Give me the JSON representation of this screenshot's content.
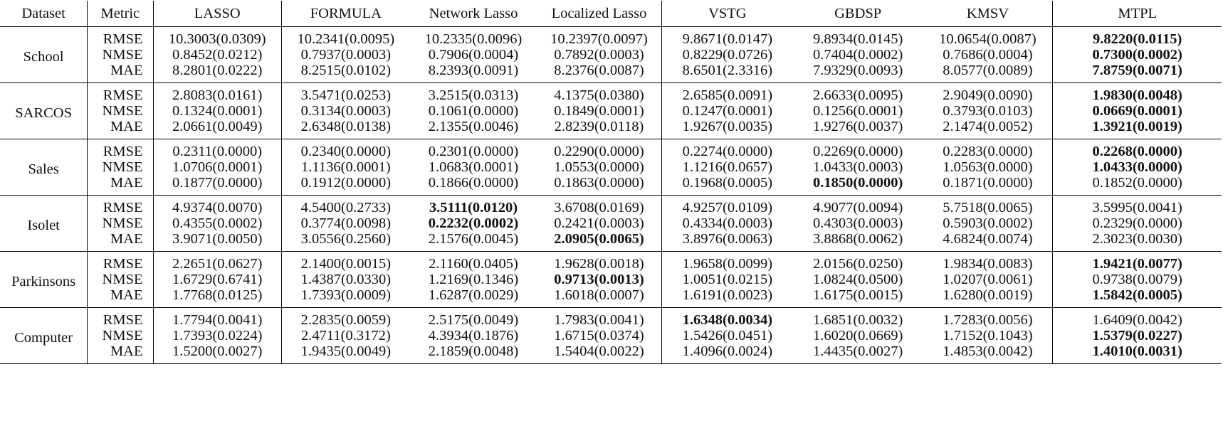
{
  "table": {
    "headers": [
      "Dataset",
      "Metric",
      "LASSO",
      "FORMULA",
      "Network Lasso",
      "Localized Lasso",
      "VSTG",
      "GBDSP",
      "KMSV",
      "MTPL"
    ],
    "groups": [
      {
        "dataset": "School",
        "rows": [
          {
            "metric": "RMSE",
            "values": [
              "10.3003(0.0309)",
              "10.2341(0.0095)",
              "10.2335(0.0096)",
              "10.2397(0.0097)",
              "9.8671(0.0147)",
              "9.8934(0.0145)",
              "10.0654(0.0087)",
              "9.8220(0.0115)"
            ],
            "bold": [
              7
            ]
          },
          {
            "metric": "NMSE",
            "values": [
              "0.8452(0.0212)",
              "0.7937(0.0003)",
              "0.7906(0.0004)",
              "0.7892(0.0003)",
              "0.8229(0.0726)",
              "0.7404(0.0002)",
              "0.7686(0.0004)",
              "0.7300(0.0002)"
            ],
            "bold": [
              7
            ]
          },
          {
            "metric": "MAE",
            "values": [
              "8.2801(0.0222)",
              "8.2515(0.0102)",
              "8.2393(0.0091)",
              "8.2376(0.0087)",
              "8.6501(2.3316)",
              "7.9329(0.0093)",
              "8.0577(0.0089)",
              "7.8759(0.0071)"
            ],
            "bold": [
              7
            ]
          }
        ]
      },
      {
        "dataset": "SARCOS",
        "rows": [
          {
            "metric": "RMSE",
            "values": [
              "2.8083(0.0161)",
              "3.5471(0.0253)",
              "3.2515(0.0313)",
              "4.1375(0.0380)",
              "2.6585(0.0091)",
              "2.6633(0.0095)",
              "2.9049(0.0090)",
              "1.9830(0.0048)"
            ],
            "bold": [
              7
            ]
          },
          {
            "metric": "NMSE",
            "values": [
              "0.1324(0.0001)",
              "0.3134(0.0003)",
              "0.1061(0.0000)",
              "0.1849(0.0001)",
              "0.1247(0.0001)",
              "0.1256(0.0001)",
              "0.3793(0.0103)",
              "0.0669(0.0001)"
            ],
            "bold": [
              7
            ]
          },
          {
            "metric": "MAE",
            "values": [
              "2.0661(0.0049)",
              "2.6348(0.0138)",
              "2.1355(0.0046)",
              "2.8239(0.0118)",
              "1.9267(0.0035)",
              "1.9276(0.0037)",
              "2.1474(0.0052)",
              "1.3921(0.0019)"
            ],
            "bold": [
              7
            ]
          }
        ]
      },
      {
        "dataset": "Sales",
        "rows": [
          {
            "metric": "RMSE",
            "values": [
              "0.2311(0.0000)",
              "0.2340(0.0000)",
              "0.2301(0.0000)",
              "0.2290(0.0000)",
              "0.2274(0.0000)",
              "0.2269(0.0000)",
              "0.2283(0.0000)",
              "0.2268(0.0000)"
            ],
            "bold": [
              7
            ]
          },
          {
            "metric": "NMSE",
            "values": [
              "1.0706(0.0001)",
              "1.1136(0.0001)",
              "1.0683(0.0001)",
              "1.0553(0.0000)",
              "1.1216(0.0657)",
              "1.0433(0.0003)",
              "1.0563(0.0000)",
              "1.0433(0.0000)"
            ],
            "bold": [
              7
            ]
          },
          {
            "metric": "MAE",
            "values": [
              "0.1877(0.0000)",
              "0.1912(0.0000)",
              "0.1866(0.0000)",
              "0.1863(0.0000)",
              "0.1968(0.0005)",
              "0.1850(0.0000)",
              "0.1871(0.0000)",
              "0.1852(0.0000)"
            ],
            "bold": [
              5
            ]
          }
        ]
      },
      {
        "dataset": "Isolet",
        "rows": [
          {
            "metric": "RMSE",
            "values": [
              "4.9374(0.0070)",
              "4.5400(0.2733)",
              "3.5111(0.0120)",
              "3.6708(0.0169)",
              "4.9257(0.0109)",
              "4.9077(0.0094)",
              "5.7518(0.0065)",
              "3.5995(0.0041)"
            ],
            "bold": [
              2
            ]
          },
          {
            "metric": "NMSE",
            "values": [
              "0.4355(0.0002)",
              "0.3774(0.0098)",
              "0.2232(0.0002)",
              "0.2421(0.0003)",
              "0.4334(0.0003)",
              "0.4303(0.0003)",
              "0.5903(0.0002)",
              "0.2329(0.0000)"
            ],
            "bold": [
              2
            ]
          },
          {
            "metric": "MAE",
            "values": [
              "3.9071(0.0050)",
              "3.0556(0.2560)",
              "2.1576(0.0045)",
              "2.0905(0.0065)",
              "3.8976(0.0063)",
              "3.8868(0.0062)",
              "4.6824(0.0074)",
              "2.3023(0.0030)"
            ],
            "bold": [
              3
            ]
          }
        ]
      },
      {
        "dataset": "Parkinsons",
        "rows": [
          {
            "metric": "RMSE",
            "values": [
              "2.2651(0.0627)",
              "2.1400(0.0015)",
              "2.1160(0.0405)",
              "1.9628(0.0018)",
              "1.9658(0.0099)",
              "2.0156(0.0250)",
              "1.9834(0.0083)",
              "1.9421(0.0077)"
            ],
            "bold": [
              7
            ]
          },
          {
            "metric": "NMSE",
            "values": [
              "1.6729(0.6741)",
              "1.4387(0.0330)",
              "1.2169(0.1346)",
              "0.9713(0.0013)",
              "1.0051(0.0215)",
              "1.0824(0.0500)",
              "1.0207(0.0061)",
              "0.9738(0.0079)"
            ],
            "bold": [
              3
            ]
          },
          {
            "metric": "MAE",
            "values": [
              "1.7768(0.0125)",
              "1.7393(0.0009)",
              "1.6287(0.0029)",
              "1.6018(0.0007)",
              "1.6191(0.0023)",
              "1.6175(0.0015)",
              "1.6280(0.0019)",
              "1.5842(0.0005)"
            ],
            "bold": [
              7
            ]
          }
        ]
      },
      {
        "dataset": "Computer",
        "rows": [
          {
            "metric": "RMSE",
            "values": [
              "1.7794(0.0041)",
              "2.2835(0.0059)",
              "2.5175(0.0049)",
              "1.7983(0.0041)",
              "1.6348(0.0034)",
              "1.6851(0.0032)",
              "1.7283(0.0056)",
              "1.6409(0.0042)"
            ],
            "bold": [
              4
            ]
          },
          {
            "metric": "NMSE",
            "values": [
              "1.7393(0.0224)",
              "2.4711(0.3172)",
              "4.3934(0.1876)",
              "1.6715(0.0374)",
              "1.5426(0.0451)",
              "1.6020(0.0669)",
              "1.7152(0.1043)",
              "1.5379(0.0227)"
            ],
            "bold": [
              7
            ]
          },
          {
            "metric": "MAE",
            "values": [
              "1.5200(0.0027)",
              "1.9435(0.0049)",
              "2.1859(0.0048)",
              "1.5404(0.0022)",
              "1.4096(0.0024)",
              "1.4435(0.0027)",
              "1.4853(0.0042)",
              "1.4010(0.0031)"
            ],
            "bold": [
              7
            ]
          }
        ]
      }
    ]
  }
}
